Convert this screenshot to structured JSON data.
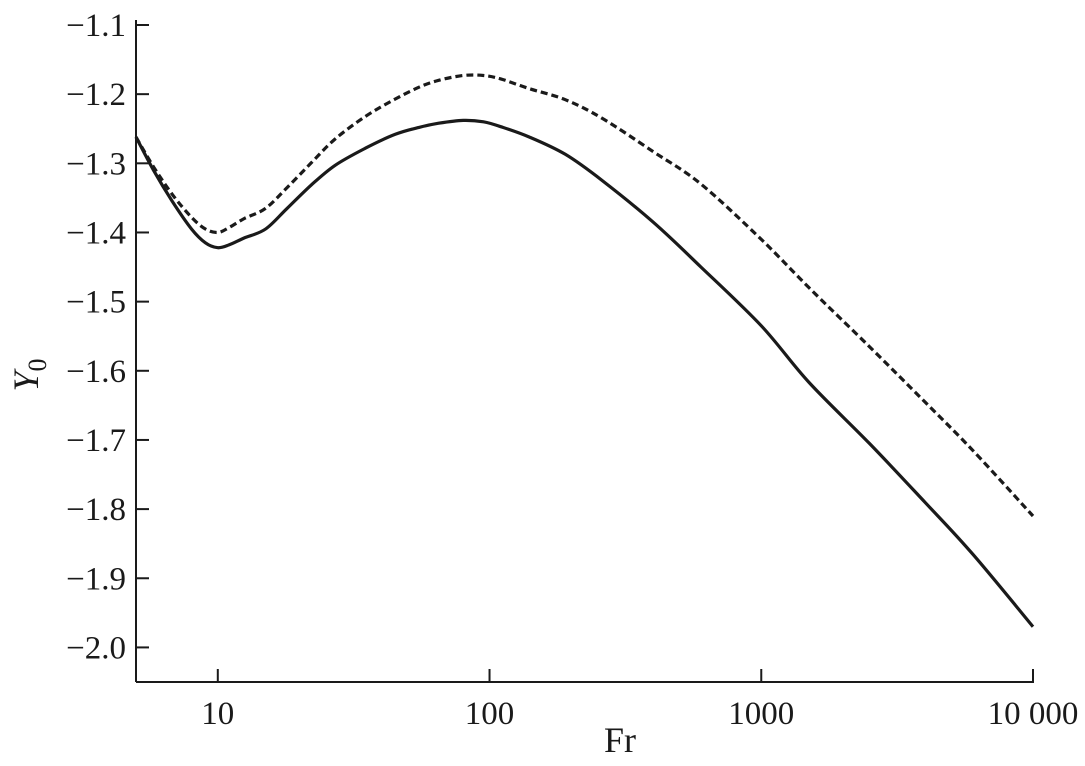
{
  "chart_data": {
    "type": "line",
    "title": "",
    "xlabel": "Fr",
    "ylabel": "Y",
    "ylabel_subscript": "0",
    "xscale": "log",
    "xlim": [
      5,
      10000
    ],
    "ylim": [
      -2.05,
      -1.1
    ],
    "x_ticks": [
      10,
      100,
      1000,
      10000
    ],
    "x_tick_labels": [
      "10",
      "100",
      "1000",
      "10 000"
    ],
    "y_ticks": [
      -1.1,
      -1.2,
      -1.3,
      -1.4,
      -1.5,
      -1.6,
      -1.7,
      -1.8,
      -1.9,
      -2.0
    ],
    "y_tick_labels": [
      "−1.1",
      "−1.2",
      "−1.3",
      "−1.4",
      "−1.5",
      "−1.6",
      "−1.7",
      "−1.8",
      "−1.9",
      "−2.0"
    ],
    "grid": false,
    "legend": "none",
    "series": [
      {
        "style": "solid",
        "color": "#1a1a1a",
        "x": [
          5,
          5.8,
          6.8,
          8,
          9,
          10,
          11,
          12.5,
          15,
          18,
          22,
          27,
          35,
          45,
          55,
          65,
          80,
          95,
          110,
          140,
          190,
          260,
          400,
          600,
          1000,
          1500,
          2500,
          4000,
          6000,
          10000
        ],
        "y": [
          -1.262,
          -1.31,
          -1.355,
          -1.395,
          -1.415,
          -1.422,
          -1.418,
          -1.408,
          -1.395,
          -1.365,
          -1.332,
          -1.303,
          -1.278,
          -1.258,
          -1.248,
          -1.242,
          -1.238,
          -1.24,
          -1.247,
          -1.262,
          -1.287,
          -1.325,
          -1.385,
          -1.45,
          -1.535,
          -1.617,
          -1.705,
          -1.79,
          -1.865,
          -1.97
        ]
      },
      {
        "style": "dashed",
        "color": "#1a1a1a",
        "x": [
          5,
          5.8,
          6.8,
          8,
          9,
          10,
          11,
          12.5,
          15,
          18,
          22,
          27,
          35,
          45,
          55,
          65,
          80,
          95,
          110,
          140,
          190,
          260,
          400,
          600,
          1000,
          1500,
          2500,
          4000,
          6000,
          10000
        ],
        "y": [
          -1.262,
          -1.305,
          -1.345,
          -1.378,
          -1.395,
          -1.4,
          -1.393,
          -1.38,
          -1.365,
          -1.335,
          -1.3,
          -1.265,
          -1.232,
          -1.207,
          -1.19,
          -1.18,
          -1.173,
          -1.173,
          -1.178,
          -1.192,
          -1.208,
          -1.235,
          -1.283,
          -1.33,
          -1.41,
          -1.48,
          -1.565,
          -1.645,
          -1.715,
          -1.81
        ]
      }
    ]
  }
}
